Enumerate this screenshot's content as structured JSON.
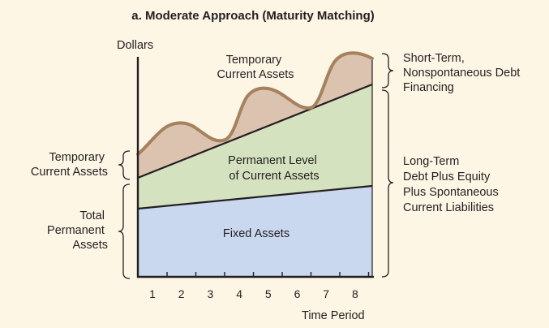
{
  "title": "a. Moderate Approach (Maturity Matching)",
  "y_axis_label": "Dollars",
  "x_axis_label": "Time Period",
  "x_ticks": [
    "1",
    "2",
    "3",
    "4",
    "5",
    "6",
    "7",
    "8"
  ],
  "regions": {
    "temporary": [
      "Temporary",
      "Current Assets"
    ],
    "permanent": [
      "Permanent Level",
      "of Current Assets"
    ],
    "fixed": [
      "Fixed Assets"
    ]
  },
  "left_braces": {
    "temporary": [
      "Temporary",
      "Current Assets"
    ],
    "total_permanent": [
      "Total",
      "Permanent",
      "Assets"
    ]
  },
  "right_braces": {
    "short_term": [
      "Short-Term,",
      "Nonspontaneous Debt",
      "Financing"
    ],
    "long_term": [
      "Long-Term",
      "Debt Plus Equity",
      "Plus Spontaneous",
      "Current Liabilities"
    ]
  },
  "colors": {
    "background": "#fdf6e5",
    "fixed_fill": "#c9d8ef",
    "permanent_fill": "#d5e2bf",
    "temporary_fill": "#dcc3b0",
    "wave_stroke": "#a5815e",
    "axis": "#231f20"
  }
}
